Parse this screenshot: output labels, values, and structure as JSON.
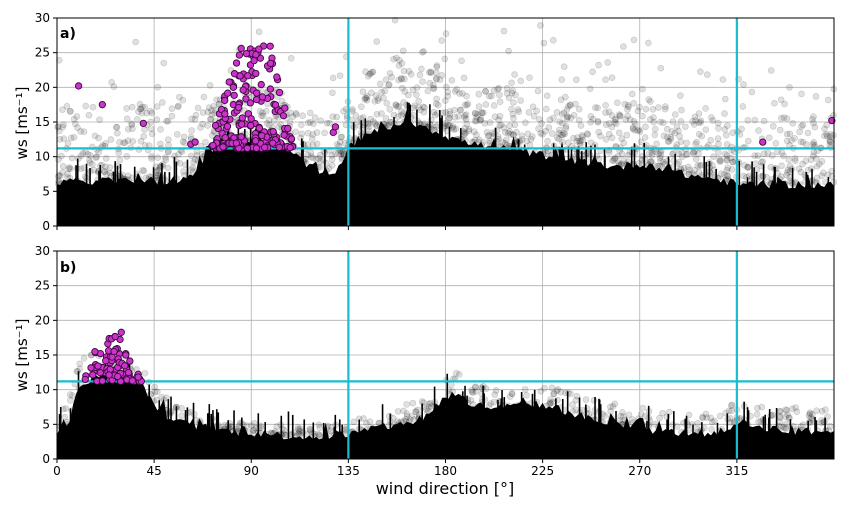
{
  "chart_data": [
    {
      "panel_label": "a)",
      "type": "scatter",
      "ylabel": "ws [ms⁻¹]",
      "xlim": [
        0,
        360
      ],
      "ylim": [
        0,
        30
      ],
      "xticks": [
        0,
        45,
        90,
        135,
        180,
        225,
        270,
        315
      ],
      "yticks": [
        0,
        5,
        10,
        15,
        20,
        25,
        30
      ],
      "xtick_labels_visible": false,
      "grid": true,
      "reference_lines": {
        "horizontal_ws": 11.2,
        "vertical_wd": [
          135,
          315
        ],
        "color": "#17BECF"
      },
      "background_envelope": {
        "description_color": "#000000",
        "wd": [
          0,
          10,
          20,
          30,
          40,
          50,
          60,
          65,
          70,
          80,
          90,
          100,
          110,
          115,
          120,
          125,
          130,
          135,
          140,
          150,
          160,
          170,
          180,
          190,
          200,
          210,
          220,
          230,
          240,
          250,
          260,
          270,
          280,
          290,
          300,
          310,
          315,
          320,
          330,
          340,
          350,
          360
        ],
        "dense_ws_top": [
          6,
          6.5,
          6.5,
          6.5,
          6.5,
          6.5,
          7,
          7.5,
          11,
          12,
          12,
          11.5,
          10.5,
          9,
          8,
          8,
          8,
          11.5,
          12.5,
          14,
          15,
          14.5,
          13,
          12,
          11.5,
          11,
          10.5,
          10,
          9.5,
          9,
          8.5,
          9,
          8.5,
          7.5,
          7,
          6.5,
          6,
          6,
          6,
          6,
          6,
          6
        ],
        "scatter_ws_top": [
          17,
          18,
          18,
          18,
          18,
          18,
          17,
          17,
          18,
          20,
          21,
          20,
          18,
          16,
          15,
          16,
          16,
          19,
          22,
          23,
          24,
          23,
          22,
          22,
          21,
          20,
          20,
          20,
          19,
          18,
          18,
          18,
          18,
          17,
          16,
          16,
          16,
          16,
          16,
          16,
          16,
          16
        ]
      },
      "highlighted_points": {
        "color": "#CC33CC",
        "wd_range": [
          70,
          110
        ],
        "ws_range": [
          11.2,
          26
        ],
        "outliers": [
          {
            "wd": 10,
            "ws": 20.2
          },
          {
            "wd": 21,
            "ws": 17.5
          },
          {
            "wd": 40,
            "ws": 14.8
          },
          {
            "wd": 62,
            "ws": 11.8
          },
          {
            "wd": 64,
            "ws": 12.1
          },
          {
            "wd": 128,
            "ws": 13.5
          },
          {
            "wd": 129,
            "ws": 14.3
          },
          {
            "wd": 327,
            "ws": 12.1
          },
          {
            "wd": 359,
            "ws": 15.2
          }
        ]
      }
    },
    {
      "panel_label": "b)",
      "type": "scatter",
      "ylabel": "ws [ms⁻¹]",
      "xlabel": "wind direction [°]",
      "xlim": [
        0,
        360
      ],
      "ylim": [
        0,
        30
      ],
      "xticks": [
        0,
        45,
        90,
        135,
        180,
        225,
        270,
        315
      ],
      "yticks": [
        0,
        5,
        10,
        15,
        20,
        25,
        30
      ],
      "xtick_labels_visible": true,
      "grid": true,
      "reference_lines": {
        "horizontal_ws": 11.2,
        "vertical_wd": [
          135,
          315
        ],
        "color": "#17BECF"
      },
      "background_envelope": {
        "description_color": "#000000",
        "wd": [
          0,
          5,
          10,
          15,
          20,
          25,
          30,
          35,
          40,
          45,
          50,
          55,
          60,
          70,
          80,
          90,
          100,
          110,
          120,
          130,
          135,
          140,
          150,
          160,
          170,
          180,
          185,
          190,
          200,
          210,
          220,
          230,
          240,
          250,
          260,
          270,
          280,
          290,
          300,
          310,
          315,
          320,
          330,
          340,
          350,
          360
        ],
        "dense_ws_top": [
          4,
          5,
          10,
          11.5,
          12,
          12,
          12,
          11.5,
          10.5,
          8,
          6.5,
          5.5,
          5,
          4.5,
          4,
          3.8,
          3.5,
          3.3,
          3.2,
          3.5,
          3.5,
          4,
          4.5,
          5,
          6,
          9,
          9.5,
          8,
          7.5,
          7.5,
          8,
          7.5,
          6.5,
          5.5,
          5,
          4.5,
          4,
          3.8,
          3.8,
          4,
          5.5,
          5,
          4.5,
          4,
          4,
          4
        ],
        "scatter_ws_top": [
          7,
          9,
          14,
          15.5,
          15.5,
          15.5,
          15,
          14,
          13,
          11,
          9,
          8,
          7,
          6,
          6,
          5.5,
          5,
          5,
          5,
          5.5,
          5.5,
          6,
          7,
          8,
          9,
          12,
          13,
          11,
          10.5,
          10.5,
          11,
          10.5,
          9.5,
          8.5,
          8,
          7.5,
          7,
          6.5,
          6.5,
          7,
          9,
          8.5,
          8,
          7.5,
          7.5,
          7
        ]
      },
      "highlighted_points": {
        "color": "#CC33CC",
        "wd_range": [
          12,
          40
        ],
        "ws_range": [
          11.2,
          18.3
        ]
      }
    }
  ]
}
